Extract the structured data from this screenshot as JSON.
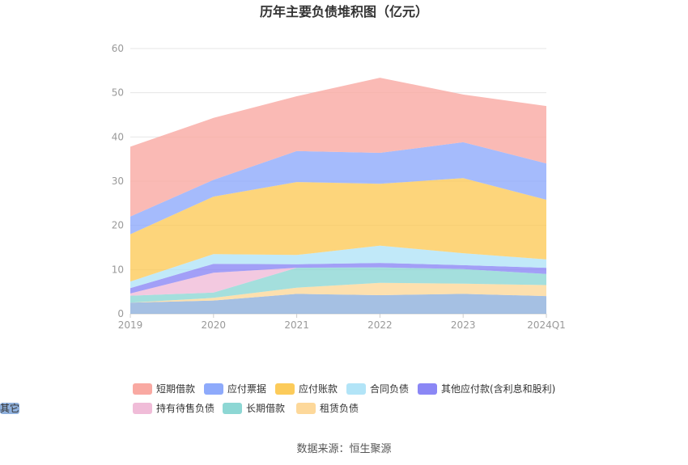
{
  "chart_data": {
    "type": "area",
    "stacked": true,
    "title": "历年主要负债堆积图（亿元）",
    "x": [
      "2019",
      "2020",
      "2021",
      "2022",
      "2023",
      "2024Q1"
    ],
    "ylim": [
      0,
      60
    ],
    "yticks": [
      0,
      10,
      20,
      30,
      40,
      50,
      60
    ],
    "grid": true,
    "legend_position": "bottom",
    "series": [
      {
        "name": "其它",
        "color": "#8fb0dc",
        "values": [
          2.5,
          3.0,
          4.5,
          4.2,
          4.5,
          4.0
        ]
      },
      {
        "name": "租赁负债",
        "color": "#fdd89a",
        "values": [
          0.0,
          0.6,
          1.4,
          2.8,
          2.3,
          2.5
        ]
      },
      {
        "name": "长期借款",
        "color": "#8dd7d4",
        "values": [
          1.6,
          1.2,
          4.5,
          3.5,
          3.3,
          2.5
        ]
      },
      {
        "name": "持有待售负债",
        "color": "#f0bcd8",
        "values": [
          0.5,
          4.5,
          0.0,
          0.0,
          0.0,
          0.0
        ]
      },
      {
        "name": "其他应付款(含利息和股利)",
        "color": "#8b87f5",
        "values": [
          1.2,
          2.0,
          0.8,
          1.0,
          0.9,
          1.4
        ]
      },
      {
        "name": "合同负债",
        "color": "#b2e4f7",
        "values": [
          1.5,
          2.2,
          2.1,
          3.9,
          2.7,
          1.9
        ]
      },
      {
        "name": "应付账款",
        "color": "#fccb5a",
        "values": [
          10.7,
          13.0,
          16.5,
          14.0,
          17.0,
          13.5
        ]
      },
      {
        "name": "应付票据",
        "color": "#8eaafb",
        "values": [
          4.0,
          3.8,
          7.0,
          7.0,
          8.1,
          8.2
        ]
      },
      {
        "name": "短期借款",
        "color": "#f9a9a2",
        "values": [
          15.8,
          14.0,
          12.4,
          17.0,
          10.8,
          13.0
        ]
      }
    ],
    "legend_order": [
      "短期借款",
      "应付票据",
      "应付账款",
      "合同负债",
      "其他应付款(含利息和股利)",
      "持有待售负债",
      "长期借款",
      "租赁负债",
      "其它"
    ]
  },
  "source": "数据来源：恒生聚源"
}
